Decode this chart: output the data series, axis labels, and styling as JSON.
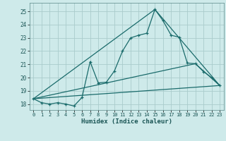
{
  "title": "",
  "xlabel": "Humidex (Indice chaleur)",
  "bg_color": "#ceeaea",
  "grid_color": "#aacccc",
  "line_color": "#1a6b6b",
  "xlim": [
    -0.5,
    23.5
  ],
  "ylim": [
    17.55,
    25.65
  ],
  "xticks": [
    0,
    1,
    2,
    3,
    4,
    5,
    6,
    7,
    8,
    9,
    10,
    11,
    12,
    13,
    14,
    15,
    16,
    17,
    18,
    19,
    20,
    21,
    22,
    23
  ],
  "yticks": [
    18,
    19,
    20,
    21,
    22,
    23,
    24,
    25
  ],
  "line1_x": [
    0,
    1,
    2,
    3,
    4,
    5,
    6,
    7,
    8,
    9,
    10,
    11,
    12,
    13,
    14,
    15,
    16,
    17,
    18,
    19,
    20,
    21,
    22,
    23
  ],
  "line1_y": [
    18.4,
    18.1,
    18.0,
    18.1,
    18.0,
    17.85,
    18.5,
    21.2,
    19.6,
    19.65,
    20.5,
    22.0,
    23.0,
    23.2,
    23.35,
    25.15,
    24.3,
    23.2,
    23.05,
    21.1,
    21.05,
    20.45,
    20.0,
    19.4
  ],
  "line3_x": [
    0,
    23
  ],
  "line3_y": [
    18.4,
    19.4
  ],
  "line4_x": [
    0,
    15,
    23
  ],
  "line4_y": [
    18.4,
    25.15,
    19.4
  ],
  "line5_x": [
    0,
    20,
    23
  ],
  "line5_y": [
    18.4,
    21.05,
    19.4
  ]
}
